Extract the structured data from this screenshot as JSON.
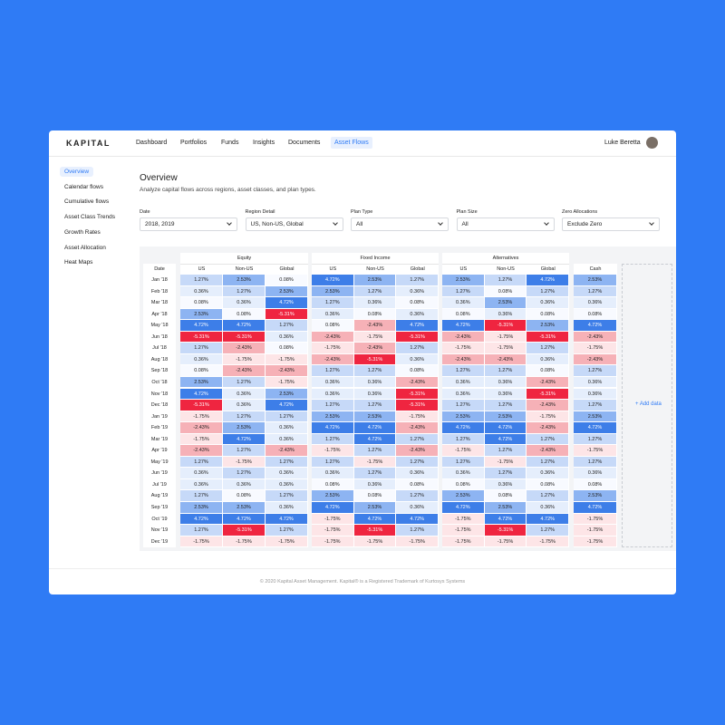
{
  "brand": "KAPITAL",
  "nav": [
    "Dashboard",
    "Portfolios",
    "Funds",
    "Insights",
    "Documents",
    "Asset Flows"
  ],
  "user": "Luke Beretta",
  "sidebar": [
    "Overview",
    "Calendar flows",
    "Cumulative flows",
    "Asset Class Trends",
    "Growth Rates",
    "Asset Allocation",
    "Heat Maps"
  ],
  "page": {
    "title": "Overview",
    "subtitle": "Analyze capital flows across regions, asset classes, and plan types."
  },
  "filters": [
    {
      "label": "Date",
      "value": "2018, 2019"
    },
    {
      "label": "Region Detail",
      "value": "US, Non-US, Global"
    },
    {
      "label": "Plan Type",
      "value": "All"
    },
    {
      "label": "Plan Size",
      "value": "All"
    },
    {
      "label": "Zero Allocations",
      "value": "Exclude Zero"
    }
  ],
  "table": {
    "date_header": "Date",
    "groups": [
      {
        "name": "Equity",
        "columns": [
          "US",
          "Non-US",
          "Global"
        ]
      },
      {
        "name": "Fixed Income",
        "columns": [
          "US",
          "Non-US",
          "Global"
        ]
      },
      {
        "name": "Alternatives",
        "columns": [
          "US",
          "Non-US",
          "Global"
        ]
      },
      {
        "columns": [
          "Cash"
        ]
      }
    ],
    "rows": [
      [
        "Jan '18",
        "1.27%",
        "2.53%",
        "0.08%",
        "4.72%",
        "2.53%",
        "1.27%",
        "2.53%",
        "1.27%",
        "4.72%",
        "2.53%"
      ],
      [
        "Feb '18",
        "0.36%",
        "1.27%",
        "2.53%",
        "2.53%",
        "1.27%",
        "0.36%",
        "1.27%",
        "0.08%",
        "1.27%",
        "1.27%"
      ],
      [
        "Mar '18",
        "0.08%",
        "0.36%",
        "4.72%",
        "1.27%",
        "0.36%",
        "0.08%",
        "0.36%",
        "2.53%",
        "0.36%",
        "0.36%"
      ],
      [
        "Apr '18",
        "2.53%",
        "0.08%",
        "-5.31%",
        "0.36%",
        "0.08%",
        "0.36%",
        "0.08%",
        "0.36%",
        "0.08%",
        "0.08%"
      ],
      [
        "May '18",
        "4.72%",
        "4.72%",
        "1.27%",
        "0.08%",
        "-2.43%",
        "4.72%",
        "4.72%",
        "-5.31%",
        "2.53%",
        "4.72%"
      ],
      [
        "Jun '18",
        "-5.31%",
        "-5.31%",
        "0.36%",
        "-2.43%",
        "-1.75%",
        "-5.31%",
        "-2.43%",
        "-1.75%",
        "-5.31%",
        "-2.43%"
      ],
      [
        "Jul '18",
        "1.27%",
        "-2.43%",
        "0.08%",
        "-1.75%",
        "-2.43%",
        "1.27%",
        "-1.75%",
        "-1.75%",
        "1.27%",
        "-1.75%"
      ],
      [
        "Aug '18",
        "0.36%",
        "-1.75%",
        "-1.75%",
        "-2.43%",
        "-5.31%",
        "0.36%",
        "-2.43%",
        "-2.43%",
        "0.36%",
        "-2.43%"
      ],
      [
        "Sep '18",
        "0.08%",
        "-2.43%",
        "-2.43%",
        "1.27%",
        "1.27%",
        "0.08%",
        "1.27%",
        "1.27%",
        "0.08%",
        "1.27%"
      ],
      [
        "Oct '18",
        "2.53%",
        "1.27%",
        "-1.75%",
        "0.36%",
        "0.36%",
        "-2.43%",
        "0.36%",
        "0.36%",
        "-2.43%",
        "0.36%"
      ],
      [
        "Nov '18",
        "4.72%",
        "0.36%",
        "2.53%",
        "0.36%",
        "0.36%",
        "-5.31%",
        "0.36%",
        "0.36%",
        "-5.31%",
        "0.36%"
      ],
      [
        "Dec '18",
        "-5.31%",
        "0.36%",
        "4.72%",
        "1.27%",
        "1.27%",
        "-5.31%",
        "1.27%",
        "1.27%",
        "-2.43%",
        "1.27%"
      ],
      [
        "Jan '19",
        "-1.75%",
        "1.27%",
        "1.27%",
        "2.53%",
        "2.53%",
        "-1.75%",
        "2.53%",
        "2.53%",
        "-1.75%",
        "2.53%"
      ],
      [
        "Feb '19",
        "-2.43%",
        "2.53%",
        "0.36%",
        "4.72%",
        "4.72%",
        "-2.43%",
        "4.72%",
        "4.72%",
        "-2.43%",
        "4.72%"
      ],
      [
        "Mar '19",
        "-1.75%",
        "4.72%",
        "0.36%",
        "1.27%",
        "4.72%",
        "1.27%",
        "1.27%",
        "4.72%",
        "1.27%",
        "1.27%"
      ],
      [
        "Apr '19",
        "-2.43%",
        "1.27%",
        "-2.43%",
        "-1.75%",
        "1.27%",
        "-2.43%",
        "-1.75%",
        "1.27%",
        "-2.43%",
        "-1.75%"
      ],
      [
        "May '19",
        "1.27%",
        "-1.75%",
        "1.27%",
        "1.27%",
        "-1.75%",
        "1.27%",
        "1.27%",
        "-1.75%",
        "1.27%",
        "1.27%"
      ],
      [
        "Jun '19",
        "0.36%",
        "1.27%",
        "0.36%",
        "0.36%",
        "1.27%",
        "0.36%",
        "0.36%",
        "1.27%",
        "0.36%",
        "0.36%"
      ],
      [
        "Jul '19",
        "0.36%",
        "0.36%",
        "0.36%",
        "0.08%",
        "0.36%",
        "0.08%",
        "0.08%",
        "0.36%",
        "0.08%",
        "0.08%"
      ],
      [
        "Aug '19",
        "1.27%",
        "0.08%",
        "1.27%",
        "2.53%",
        "0.08%",
        "1.27%",
        "2.53%",
        "0.08%",
        "1.27%",
        "2.53%"
      ],
      [
        "Sep '19",
        "2.53%",
        "2.53%",
        "0.36%",
        "4.72%",
        "2.53%",
        "0.36%",
        "4.72%",
        "2.53%",
        "0.36%",
        "4.72%"
      ],
      [
        "Oct '19",
        "4.72%",
        "4.72%",
        "4.72%",
        "-1.75%",
        "4.72%",
        "4.72%",
        "-1.75%",
        "4.72%",
        "4.72%",
        "-1.75%"
      ],
      [
        "Nov '19",
        "1.27%",
        "-5.31%",
        "1.27%",
        "-1.75%",
        "-5.31%",
        "1.27%",
        "-1.75%",
        "-5.31%",
        "1.27%",
        "-1.75%"
      ],
      [
        "Dec '19",
        "-1.75%",
        "-1.75%",
        "-1.75%",
        "-1.75%",
        "-1.75%",
        "-1.75%",
        "-1.75%",
        "-1.75%",
        "-1.75%",
        "-1.75%"
      ]
    ]
  },
  "add_data": "+ Add data",
  "footer": "© 2020 Kapital Asset Management. Kapital® is a Registered Trademark of Kurtosys Systems"
}
